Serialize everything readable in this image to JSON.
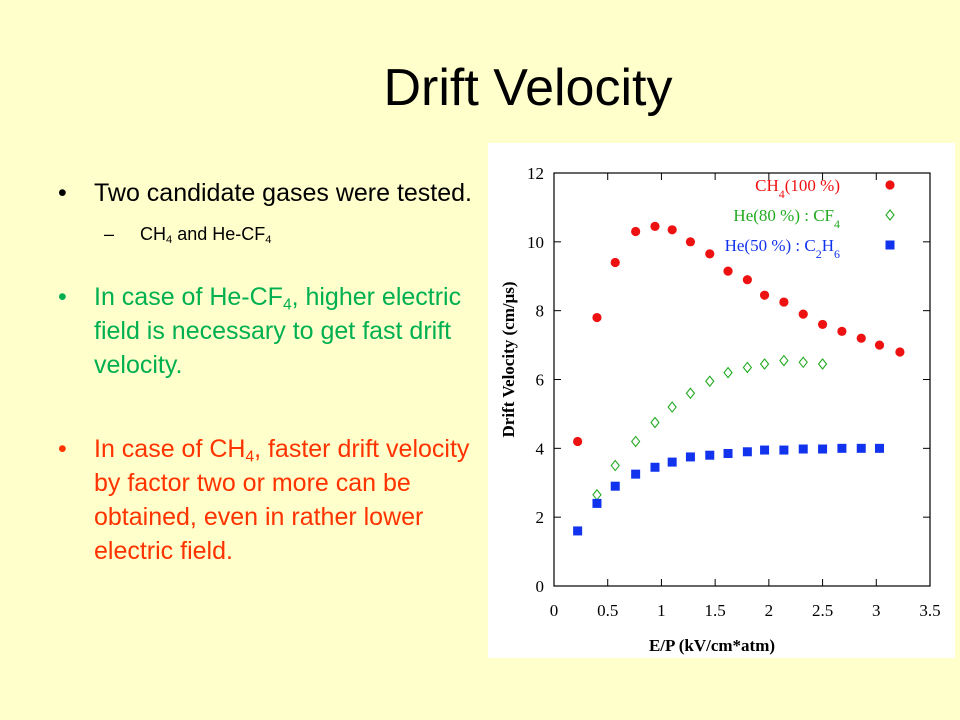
{
  "slide": {
    "title": "Drift Velocity",
    "bullets": [
      {
        "text": "Two candidate gases were tested.",
        "color": "#000000"
      },
      {
        "text": "In case of He-CF4, higher electric field is necessary to get fast drift velocity.",
        "color": "#00B050"
      },
      {
        "text": "In case of CH4, faster drift velocity by factor two or more can be obtained, even in rather lower electric field.",
        "color": "#FF3300"
      }
    ],
    "sub_bullet": "CH4 and He-CF4"
  },
  "chart_data": {
    "type": "scatter",
    "xlabel": "E/P (kV/cm*atm)",
    "ylabel": "Drift Velocity (cm/μs)",
    "xlim": [
      0,
      3.5
    ],
    "ylim": [
      0,
      12
    ],
    "xticks": [
      "0",
      "0.5",
      "1",
      "1.5",
      "2",
      "2.5",
      "3",
      "3.5"
    ],
    "yticks": [
      "0",
      "2",
      "4",
      "6",
      "8",
      "10",
      "12"
    ],
    "grid": false,
    "legend_position": "top-right",
    "series": [
      {
        "name": "CH4(100 %)",
        "marker": "circle",
        "color": "#EE1111",
        "x": [
          0.22,
          0.4,
          0.57,
          0.76,
          0.94,
          1.1,
          1.27,
          1.45,
          1.62,
          1.8,
          1.96,
          2.14,
          2.32,
          2.5,
          2.68,
          2.86,
          3.03,
          3.22
        ],
        "y": [
          4.2,
          7.8,
          9.4,
          10.3,
          10.45,
          10.35,
          10.0,
          9.65,
          9.15,
          8.9,
          8.45,
          8.25,
          7.9,
          7.6,
          7.4,
          7.2,
          7.0,
          6.8
        ]
      },
      {
        "name": "He(80 %) : CF4",
        "marker": "diamond",
        "color": "#22AA22",
        "x": [
          0.4,
          0.57,
          0.76,
          0.94,
          1.1,
          1.27,
          1.45,
          1.62,
          1.8,
          1.96,
          2.14,
          2.32,
          2.5
        ],
        "y": [
          2.65,
          3.5,
          4.2,
          4.75,
          5.2,
          5.6,
          5.95,
          6.2,
          6.35,
          6.45,
          6.55,
          6.5,
          6.45
        ]
      },
      {
        "name": "He(50 %) : C2H6",
        "marker": "square",
        "color": "#1133EE",
        "x": [
          0.22,
          0.4,
          0.57,
          0.76,
          0.94,
          1.1,
          1.27,
          1.45,
          1.62,
          1.8,
          1.96,
          2.14,
          2.32,
          2.5,
          2.68,
          2.86,
          3.03
        ],
        "y": [
          1.6,
          2.4,
          2.9,
          3.25,
          3.45,
          3.6,
          3.75,
          3.8,
          3.85,
          3.9,
          3.95,
          3.95,
          3.98,
          3.98,
          4.0,
          4.0,
          4.0
        ]
      }
    ]
  }
}
